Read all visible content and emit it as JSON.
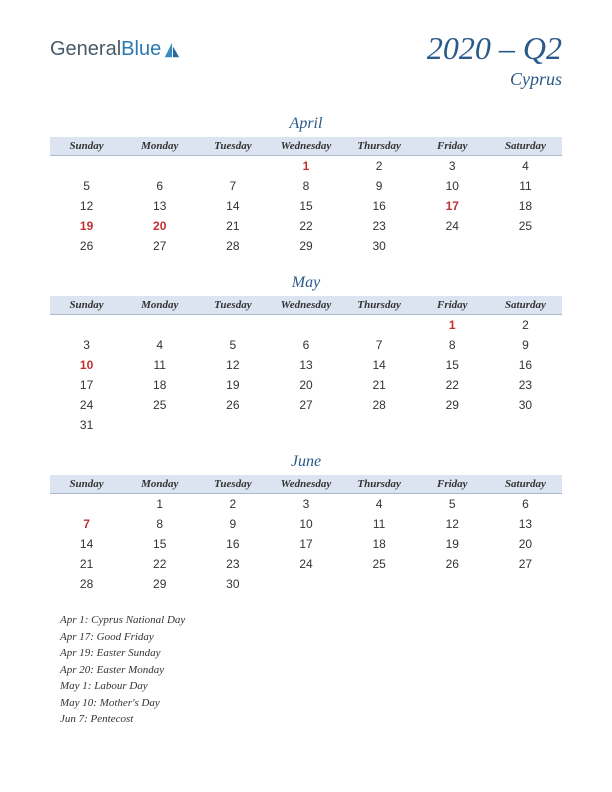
{
  "logo": {
    "part1": "General",
    "part2": "Blue"
  },
  "title": "2020 – Q2",
  "subtitle": "Cyprus",
  "day_headers": [
    "Sunday",
    "Monday",
    "Tuesday",
    "Wednesday",
    "Thursday",
    "Friday",
    "Saturday"
  ],
  "header_bg": "#dce4f2",
  "accent_color": "#2a5a8a",
  "holiday_color": "#c23030",
  "months": [
    {
      "name": "April",
      "weeks": [
        [
          {
            "d": ""
          },
          {
            "d": ""
          },
          {
            "d": ""
          },
          {
            "d": "1",
            "h": true
          },
          {
            "d": "2"
          },
          {
            "d": "3"
          },
          {
            "d": "4"
          }
        ],
        [
          {
            "d": "5"
          },
          {
            "d": "6"
          },
          {
            "d": "7"
          },
          {
            "d": "8"
          },
          {
            "d": "9"
          },
          {
            "d": "10"
          },
          {
            "d": "11"
          }
        ],
        [
          {
            "d": "12"
          },
          {
            "d": "13"
          },
          {
            "d": "14"
          },
          {
            "d": "15"
          },
          {
            "d": "16"
          },
          {
            "d": "17",
            "h": true
          },
          {
            "d": "18"
          }
        ],
        [
          {
            "d": "19",
            "h": true
          },
          {
            "d": "20",
            "h": true
          },
          {
            "d": "21"
          },
          {
            "d": "22"
          },
          {
            "d": "23"
          },
          {
            "d": "24"
          },
          {
            "d": "25"
          }
        ],
        [
          {
            "d": "26"
          },
          {
            "d": "27"
          },
          {
            "d": "28"
          },
          {
            "d": "29"
          },
          {
            "d": "30"
          },
          {
            "d": ""
          },
          {
            "d": ""
          }
        ]
      ]
    },
    {
      "name": "May",
      "weeks": [
        [
          {
            "d": ""
          },
          {
            "d": ""
          },
          {
            "d": ""
          },
          {
            "d": ""
          },
          {
            "d": ""
          },
          {
            "d": "1",
            "h": true
          },
          {
            "d": "2"
          }
        ],
        [
          {
            "d": "3"
          },
          {
            "d": "4"
          },
          {
            "d": "5"
          },
          {
            "d": "6"
          },
          {
            "d": "7"
          },
          {
            "d": "8"
          },
          {
            "d": "9"
          }
        ],
        [
          {
            "d": "10",
            "h": true
          },
          {
            "d": "11"
          },
          {
            "d": "12"
          },
          {
            "d": "13"
          },
          {
            "d": "14"
          },
          {
            "d": "15"
          },
          {
            "d": "16"
          }
        ],
        [
          {
            "d": "17"
          },
          {
            "d": "18"
          },
          {
            "d": "19"
          },
          {
            "d": "20"
          },
          {
            "d": "21"
          },
          {
            "d": "22"
          },
          {
            "d": "23"
          }
        ],
        [
          {
            "d": "24"
          },
          {
            "d": "25"
          },
          {
            "d": "26"
          },
          {
            "d": "27"
          },
          {
            "d": "28"
          },
          {
            "d": "29"
          },
          {
            "d": "30"
          }
        ],
        [
          {
            "d": "31"
          },
          {
            "d": ""
          },
          {
            "d": ""
          },
          {
            "d": ""
          },
          {
            "d": ""
          },
          {
            "d": ""
          },
          {
            "d": ""
          }
        ]
      ]
    },
    {
      "name": "June",
      "weeks": [
        [
          {
            "d": ""
          },
          {
            "d": "1"
          },
          {
            "d": "2"
          },
          {
            "d": "3"
          },
          {
            "d": "4"
          },
          {
            "d": "5"
          },
          {
            "d": "6"
          }
        ],
        [
          {
            "d": "7",
            "h": true
          },
          {
            "d": "8"
          },
          {
            "d": "9"
          },
          {
            "d": "10"
          },
          {
            "d": "11"
          },
          {
            "d": "12"
          },
          {
            "d": "13"
          }
        ],
        [
          {
            "d": "14"
          },
          {
            "d": "15"
          },
          {
            "d": "16"
          },
          {
            "d": "17"
          },
          {
            "d": "18"
          },
          {
            "d": "19"
          },
          {
            "d": "20"
          }
        ],
        [
          {
            "d": "21"
          },
          {
            "d": "22"
          },
          {
            "d": "23"
          },
          {
            "d": "24"
          },
          {
            "d": "25"
          },
          {
            "d": "26"
          },
          {
            "d": "27"
          }
        ],
        [
          {
            "d": "28"
          },
          {
            "d": "29"
          },
          {
            "d": "30"
          },
          {
            "d": ""
          },
          {
            "d": ""
          },
          {
            "d": ""
          },
          {
            "d": ""
          }
        ]
      ]
    }
  ],
  "holidays": [
    "Apr 1: Cyprus National Day",
    "Apr 17: Good Friday",
    "Apr 19: Easter Sunday",
    "Apr 20: Easter Monday",
    "May 1: Labour Day",
    "May 10: Mother's Day",
    "Jun 7: Pentecost"
  ]
}
